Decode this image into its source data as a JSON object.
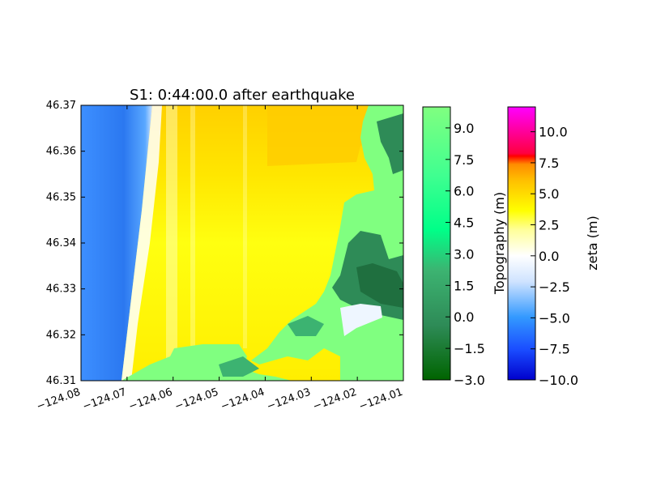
{
  "chart_data": {
    "type": "heatmap",
    "title": "S1: 0:44:00.0 after earthquake",
    "xlabel": "",
    "ylabel": "",
    "xlim": [
      -124.08,
      -124.01
    ],
    "ylim": [
      46.31,
      46.37
    ],
    "x_ticks": [
      "−124.08",
      "−124.07",
      "−124.06",
      "−124.05",
      "−124.04",
      "−124.03",
      "−124.02",
      "−124.01"
    ],
    "y_ticks": [
      "46.37",
      "46.36",
      "46.35",
      "46.34",
      "46.33",
      "46.32",
      "46.31"
    ],
    "colorbars": [
      {
        "label": "Topography (m)",
        "range": [
          -3.0,
          10.0
        ],
        "ticks": [
          "9.0",
          "7.5",
          "6.0",
          "4.5",
          "3.0",
          "1.5",
          "0.0",
          "−1.5",
          "−3.0"
        ],
        "colors": [
          "#006400",
          "#2e8b57",
          "#3cb371",
          "#00ff7f",
          "#7fffd4",
          "#80ff80"
        ]
      },
      {
        "label": "zeta (m)",
        "range": [
          -10.0,
          12.0
        ],
        "ticks": [
          "10.0",
          "7.5",
          "5.0",
          "2.5",
          "0.0",
          "−2.5",
          "−5.0",
          "−7.5",
          "−10.0"
        ],
        "colors": [
          "#0000cc",
          "#1e90ff",
          "#ffffff",
          "#ffff00",
          "#ff8c00",
          "#ff0000",
          "#ff00ff"
        ]
      }
    ],
    "grid": false
  }
}
